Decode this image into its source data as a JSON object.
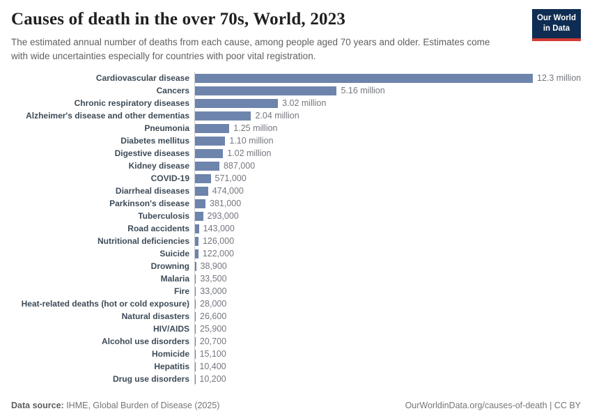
{
  "header": {
    "title": "Causes of death in the over 70s, World, 2023",
    "subtitle": "The estimated annual number of deaths from each cause, among people aged 70 years and older. Estimates come with wide uncertainties especially for countries with poor vital registration.",
    "logo": {
      "line1": "Our World",
      "line2": "in Data"
    }
  },
  "chart_data": {
    "type": "bar",
    "orientation": "horizontal",
    "title": "Causes of death in the over 70s, World, 2023",
    "xlabel": "",
    "ylabel": "",
    "grid": false,
    "legend": false,
    "xlim": [
      0,
      12300000
    ],
    "bar_color": "#6d84ac",
    "categories": [
      "Cardiovascular disease",
      "Cancers",
      "Chronic respiratory diseases",
      "Alzheimer's disease and other dementias",
      "Pneumonia",
      "Diabetes mellitus",
      "Digestive diseases",
      "Kidney disease",
      "COVID-19",
      "Diarrheal diseases",
      "Parkinson's disease",
      "Tuberculosis",
      "Road accidents",
      "Nutritional deficiencies",
      "Suicide",
      "Drowning",
      "Malaria",
      "Fire",
      "Heat-related deaths (hot or cold exposure)",
      "Natural disasters",
      "HIV/AIDS",
      "Alcohol use disorders",
      "Homicide",
      "Hepatitis",
      "Drug use disorders"
    ],
    "values": [
      12300000,
      5160000,
      3020000,
      2040000,
      1250000,
      1100000,
      1020000,
      887000,
      571000,
      474000,
      381000,
      293000,
      143000,
      126000,
      122000,
      38900,
      33500,
      33000,
      28000,
      26600,
      25900,
      20700,
      15100,
      10400,
      10200
    ],
    "value_labels": [
      "12.3 million",
      "5.16 million",
      "3.02 million",
      "2.04 million",
      "1.25 million",
      "1.10 million",
      "1.02 million",
      "887,000",
      "571,000",
      "474,000",
      "381,000",
      "293,000",
      "143,000",
      "126,000",
      "122,000",
      "38,900",
      "33,500",
      "33,000",
      "28,000",
      "26,600",
      "25,900",
      "20,700",
      "15,100",
      "10,400",
      "10,200"
    ]
  },
  "footer": {
    "datasource_label": "Data source:",
    "datasource_text": " IHME, Global Burden of Disease (2025)",
    "credit": "OurWorldinData.org/causes-of-death | CC BY"
  },
  "colors": {
    "bar": "#6d84ac",
    "category_label": "#3d4b57",
    "value_label": "#74777f",
    "axis_line": "#cccccc",
    "logo_navy": "#0f2d52",
    "logo_red": "#d23a34"
  }
}
